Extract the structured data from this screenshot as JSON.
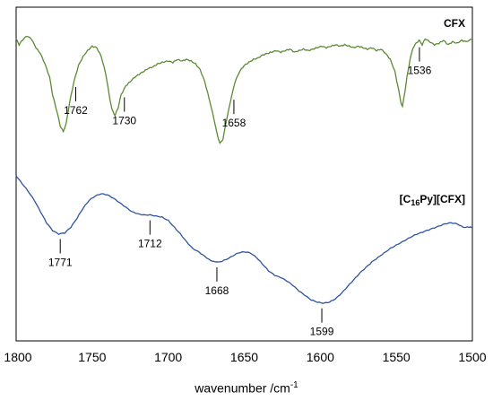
{
  "chart_data": {
    "type": "line",
    "xlabel_text": "wavenumber /cm",
    "xlabel_sup": "-1",
    "xlim": [
      1800,
      1500
    ],
    "x_reversed": true,
    "xticks": [
      1800,
      1750,
      1700,
      1650,
      1600,
      1550,
      1500
    ],
    "grid": false,
    "series": [
      {
        "name": "CFX",
        "label_parts": [
          "CFX"
        ],
        "color": "#5b8a33",
        "peaks": [
          1762,
          1730,
          1658,
          1536
        ],
        "points": [
          [
            1800,
            0.84
          ],
          [
            1798,
            0.8
          ],
          [
            1796,
            0.83
          ],
          [
            1793,
            0.86
          ],
          [
            1790,
            0.84
          ],
          [
            1787,
            0.78
          ],
          [
            1784,
            0.74
          ],
          [
            1781,
            0.67
          ],
          [
            1778,
            0.58
          ],
          [
            1776,
            0.46
          ],
          [
            1773,
            0.34
          ],
          [
            1771,
            0.25
          ],
          [
            1769,
            0.21
          ],
          [
            1767,
            0.27
          ],
          [
            1765,
            0.4
          ],
          [
            1762,
            0.55
          ],
          [
            1759,
            0.66
          ],
          [
            1756,
            0.72
          ],
          [
            1753,
            0.76
          ],
          [
            1750,
            0.79
          ],
          [
            1747,
            0.78
          ],
          [
            1744,
            0.72
          ],
          [
            1741,
            0.6
          ],
          [
            1739,
            0.47
          ],
          [
            1737,
            0.36
          ],
          [
            1735,
            0.32
          ],
          [
            1733,
            0.37
          ],
          [
            1731,
            0.46
          ],
          [
            1728,
            0.52
          ],
          [
            1725,
            0.55
          ],
          [
            1722,
            0.58
          ],
          [
            1719,
            0.6
          ],
          [
            1716,
            0.62
          ],
          [
            1713,
            0.64
          ],
          [
            1710,
            0.65
          ],
          [
            1707,
            0.67
          ],
          [
            1704,
            0.68
          ],
          [
            1700,
            0.69
          ],
          [
            1697,
            0.68
          ],
          [
            1694,
            0.7
          ],
          [
            1691,
            0.69
          ],
          [
            1688,
            0.7
          ],
          [
            1685,
            0.69
          ],
          [
            1682,
            0.67
          ],
          [
            1679,
            0.63
          ],
          [
            1676,
            0.55
          ],
          [
            1673,
            0.43
          ],
          [
            1670,
            0.3
          ],
          [
            1668,
            0.2
          ],
          [
            1666,
            0.13
          ],
          [
            1664,
            0.16
          ],
          [
            1662,
            0.27
          ],
          [
            1659,
            0.42
          ],
          [
            1656,
            0.55
          ],
          [
            1653,
            0.62
          ],
          [
            1650,
            0.66
          ],
          [
            1647,
            0.68
          ],
          [
            1644,
            0.7
          ],
          [
            1641,
            0.71
          ],
          [
            1638,
            0.73
          ],
          [
            1635,
            0.74
          ],
          [
            1632,
            0.75
          ],
          [
            1629,
            0.76
          ],
          [
            1626,
            0.75
          ],
          [
            1623,
            0.76
          ],
          [
            1620,
            0.77
          ],
          [
            1617,
            0.75
          ],
          [
            1614,
            0.76
          ],
          [
            1611,
            0.77
          ],
          [
            1608,
            0.76
          ],
          [
            1605,
            0.77
          ],
          [
            1602,
            0.78
          ],
          [
            1599,
            0.79
          ],
          [
            1596,
            0.78
          ],
          [
            1593,
            0.79
          ],
          [
            1590,
            0.8
          ],
          [
            1587,
            0.79
          ],
          [
            1584,
            0.8
          ],
          [
            1581,
            0.79
          ],
          [
            1578,
            0.78
          ],
          [
            1575,
            0.79
          ],
          [
            1572,
            0.78
          ],
          [
            1569,
            0.77
          ],
          [
            1566,
            0.78
          ],
          [
            1563,
            0.76
          ],
          [
            1560,
            0.77
          ],
          [
            1557,
            0.74
          ],
          [
            1554,
            0.7
          ],
          [
            1551,
            0.62
          ],
          [
            1549,
            0.52
          ],
          [
            1547,
            0.41
          ],
          [
            1546,
            0.38
          ],
          [
            1545,
            0.44
          ],
          [
            1543,
            0.58
          ],
          [
            1541,
            0.7
          ],
          [
            1539,
            0.78
          ],
          [
            1537,
            0.81
          ],
          [
            1535,
            0.83
          ],
          [
            1533,
            0.8
          ],
          [
            1531,
            0.84
          ],
          [
            1528,
            0.82
          ],
          [
            1525,
            0.8
          ],
          [
            1522,
            0.81
          ],
          [
            1519,
            0.83
          ],
          [
            1516,
            0.8
          ],
          [
            1513,
            0.82
          ],
          [
            1510,
            0.81
          ],
          [
            1507,
            0.83
          ],
          [
            1504,
            0.82
          ],
          [
            1500,
            0.84
          ]
        ]
      },
      {
        "name": "[C16Py][CFX]",
        "label_parts": [
          "[C",
          "16",
          "Py][CFX]"
        ],
        "color": "#2e55a0",
        "peaks": [
          1771,
          1712,
          1668,
          1599
        ],
        "points": [
          [
            1800,
            0.92
          ],
          [
            1796,
            0.85
          ],
          [
            1792,
            0.78
          ],
          [
            1788,
            0.7
          ],
          [
            1784,
            0.6
          ],
          [
            1780,
            0.5
          ],
          [
            1776,
            0.43
          ],
          [
            1772,
            0.4
          ],
          [
            1768,
            0.41
          ],
          [
            1764,
            0.46
          ],
          [
            1760,
            0.54
          ],
          [
            1756,
            0.63
          ],
          [
            1752,
            0.7
          ],
          [
            1748,
            0.74
          ],
          [
            1744,
            0.76
          ],
          [
            1740,
            0.75
          ],
          [
            1736,
            0.72
          ],
          [
            1732,
            0.68
          ],
          [
            1728,
            0.64
          ],
          [
            1724,
            0.6
          ],
          [
            1720,
            0.58
          ],
          [
            1716,
            0.57
          ],
          [
            1712,
            0.57
          ],
          [
            1708,
            0.56
          ],
          [
            1704,
            0.55
          ],
          [
            1700,
            0.52
          ],
          [
            1696,
            0.46
          ],
          [
            1692,
            0.4
          ],
          [
            1688,
            0.33
          ],
          [
            1684,
            0.27
          ],
          [
            1680,
            0.24
          ],
          [
            1676,
            0.2
          ],
          [
            1672,
            0.16
          ],
          [
            1669,
            0.15
          ],
          [
            1666,
            0.15
          ],
          [
            1662,
            0.17
          ],
          [
            1658,
            0.2
          ],
          [
            1654,
            0.23
          ],
          [
            1650,
            0.24
          ],
          [
            1646,
            0.23
          ],
          [
            1642,
            0.19
          ],
          [
            1638,
            0.13
          ],
          [
            1634,
            0.07
          ],
          [
            1630,
            0.03
          ],
          [
            1626,
            0.01
          ],
          [
            1622,
            -0.02
          ],
          [
            1618,
            -0.06
          ],
          [
            1614,
            -0.11
          ],
          [
            1610,
            -0.15
          ],
          [
            1606,
            -0.19
          ],
          [
            1602,
            -0.21
          ],
          [
            1598,
            -0.22
          ],
          [
            1594,
            -0.21
          ],
          [
            1590,
            -0.18
          ],
          [
            1586,
            -0.13
          ],
          [
            1582,
            -0.07
          ],
          [
            1578,
            -0.01
          ],
          [
            1574,
            0.05
          ],
          [
            1570,
            0.1
          ],
          [
            1566,
            0.15
          ],
          [
            1562,
            0.19
          ],
          [
            1558,
            0.23
          ],
          [
            1554,
            0.27
          ],
          [
            1550,
            0.3
          ],
          [
            1546,
            0.33
          ],
          [
            1542,
            0.36
          ],
          [
            1538,
            0.39
          ],
          [
            1534,
            0.41
          ],
          [
            1530,
            0.43
          ],
          [
            1526,
            0.45
          ],
          [
            1522,
            0.47
          ],
          [
            1518,
            0.49
          ],
          [
            1514,
            0.5
          ],
          [
            1510,
            0.49
          ],
          [
            1506,
            0.46
          ],
          [
            1502,
            0.46
          ],
          [
            1500,
            0.46
          ]
        ]
      }
    ]
  }
}
